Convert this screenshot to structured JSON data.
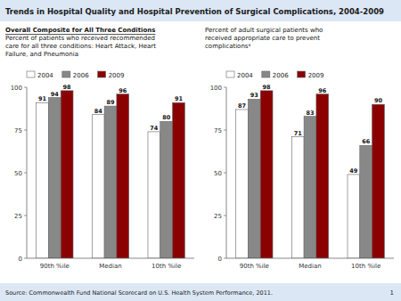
{
  "title": "Trends in Hospital Quality and Hospital Prevention of Surgical Complications, 2004-2009",
  "annotations": [
    "Source: Commonwealth Fund National Scorecard on U.S. Health System Performance, 2011.",
    "1"
  ],
  "chart_data": [
    {
      "type": "bar",
      "subtitle": [
        "Overall Composite for All Three Conditions",
        "Percent of patients who received recommended",
        "care for all three conditions: Heart Attack, Heart",
        "Failure, and Pneumonia"
      ],
      "categories": [
        "90th %ile",
        "Median",
        "10th %ile"
      ],
      "series": [
        {
          "name": "2004",
          "color": "#ffffff",
          "values": [
            91,
            84,
            74
          ]
        },
        {
          "name": "2006",
          "color": "#888888",
          "values": [
            94,
            89,
            80
          ]
        },
        {
          "name": "2009",
          "color": "#8b0000",
          "values": [
            98,
            96,
            91
          ]
        }
      ],
      "ylim": [
        0,
        100
      ],
      "yticks": [
        0,
        25,
        50,
        75,
        100
      ],
      "grid": false,
      "legend": "upper left",
      "data_labels": true
    },
    {
      "type": "bar",
      "subtitle": [
        "Percent of adult surgical patients who",
        "received appropriate care to prevent",
        "complicationsᵃ"
      ],
      "categories": [
        "90th %ile",
        "Median",
        "10th %ile"
      ],
      "series": [
        {
          "name": "2004",
          "color": "#ffffff",
          "values": [
            87,
            71,
            49
          ]
        },
        {
          "name": "2006",
          "color": "#888888",
          "values": [
            93,
            83,
            66
          ]
        },
        {
          "name": "2009",
          "color": "#8b0000",
          "values": [
            98,
            96,
            90
          ]
        }
      ],
      "ylim": [
        0,
        100
      ],
      "yticks": [
        0,
        25,
        50,
        75,
        100
      ],
      "grid": false,
      "legend": "upper left",
      "data_labels": true
    }
  ]
}
